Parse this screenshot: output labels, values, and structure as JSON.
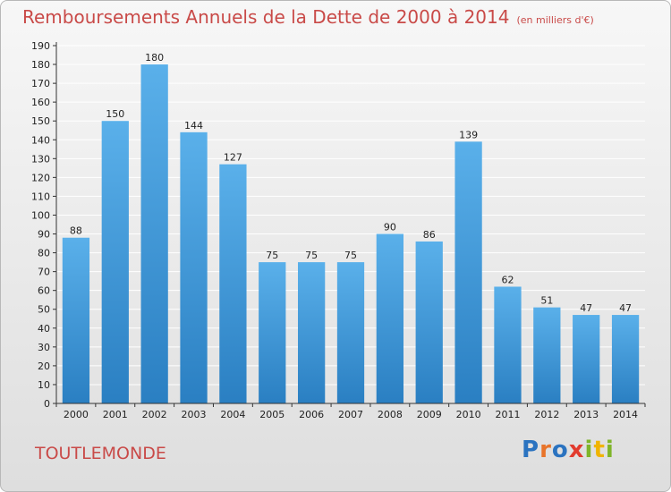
{
  "title": "Remboursements Annuels de la Dette de 2000 à 2014",
  "unit": "(en milliers d'€)",
  "commune": "TOUTLEMONDE",
  "logo": {
    "letters": [
      "P",
      "r",
      "o",
      "x",
      "i",
      "t",
      "i"
    ],
    "colors": [
      "#2b73c0",
      "#e8742a",
      "#2b73c0",
      "#e23b2e",
      "#7fb52a",
      "#f0b400",
      "#7fb52a"
    ]
  },
  "colors": {
    "title": "#c94a48",
    "bar_top": "#5ab0ea",
    "bar_bottom": "#2a7fc2",
    "axis": "#333333",
    "grid": "#ffffff"
  },
  "chart_data": {
    "type": "bar",
    "title": "Remboursements Annuels de la Dette de 2000 à 2014",
    "ylabel": "(en milliers d'€)",
    "xlabel": "",
    "categories": [
      "2000",
      "2001",
      "2002",
      "2003",
      "2004",
      "2005",
      "2006",
      "2007",
      "2008",
      "2009",
      "2010",
      "2011",
      "2012",
      "2013",
      "2014"
    ],
    "values": [
      88,
      150,
      180,
      144,
      127,
      75,
      75,
      75,
      90,
      86,
      139,
      62,
      51,
      47,
      47
    ],
    "ylim": [
      0,
      190
    ],
    "yticks": [
      0,
      10,
      20,
      30,
      40,
      50,
      60,
      70,
      80,
      90,
      100,
      110,
      120,
      130,
      140,
      150,
      160,
      170,
      180,
      190
    ],
    "grid": true,
    "data_labels": true
  }
}
